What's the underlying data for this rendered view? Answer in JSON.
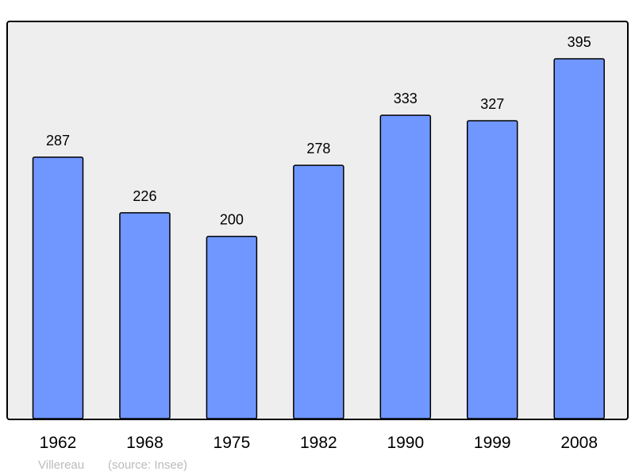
{
  "chart_data": {
    "type": "bar",
    "categories": [
      "1962",
      "1968",
      "1975",
      "1982",
      "1990",
      "1999",
      "2008"
    ],
    "values": [
      287,
      226,
      200,
      278,
      333,
      327,
      395
    ],
    "data_labels": [
      "287",
      "226",
      "200",
      "278",
      "333",
      "327",
      "395"
    ],
    "ylim": [
      0,
      395
    ],
    "grid": false,
    "legend": "none",
    "colors": {
      "bar": "#7096ff",
      "plot_background": "#eeeeee",
      "border": "#000000",
      "footer_text": "#bbbbbb"
    }
  },
  "footer": {
    "place": "Villereau",
    "source": "(source: Insee)"
  }
}
